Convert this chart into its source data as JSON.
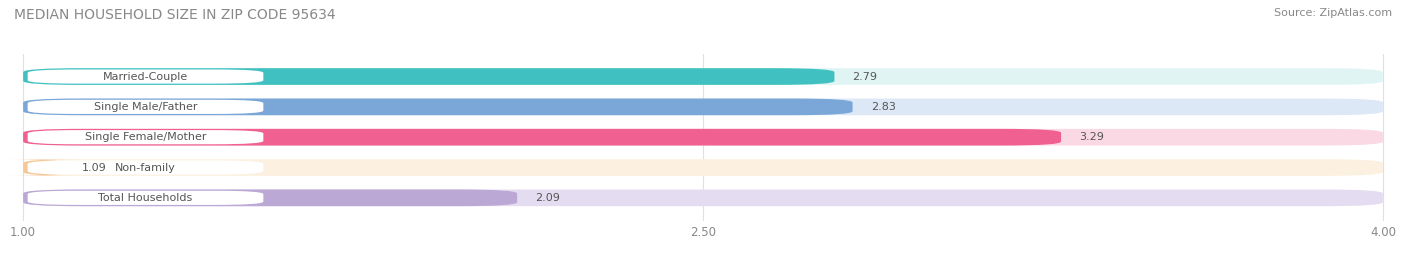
{
  "title": "MEDIAN HOUSEHOLD SIZE IN ZIP CODE 95634",
  "source": "Source: ZipAtlas.com",
  "categories": [
    "Married-Couple",
    "Single Male/Father",
    "Single Female/Mother",
    "Non-family",
    "Total Households"
  ],
  "values": [
    2.79,
    2.83,
    3.29,
    1.09,
    2.09
  ],
  "bar_colors": [
    "#40C0C0",
    "#7BA7D8",
    "#F06090",
    "#F5C896",
    "#BBA8D4"
  ],
  "bar_bg_colors": [
    "#E0F4F4",
    "#DCE8F5",
    "#FAD8E4",
    "#FCF0E0",
    "#E4DCF0"
  ],
  "label_pill_colors": [
    "#E0F4F4",
    "#DCE8F5",
    "#FAD8E4",
    "#FCF0E0",
    "#E4DCF0"
  ],
  "xlim": [
    1.0,
    4.0
  ],
  "xticks": [
    1.0,
    2.5,
    4.0
  ],
  "xtick_labels": [
    "1.00",
    "2.50",
    "4.00"
  ],
  "label_color": "#888888",
  "title_color": "#888888",
  "value_label_color": "#555555",
  "title_fontsize": 10,
  "bar_label_fontsize": 8,
  "category_fontsize": 8,
  "source_fontsize": 8,
  "bar_height": 0.55,
  "background_color": "#ffffff",
  "grid_color": "#e0e0e0"
}
